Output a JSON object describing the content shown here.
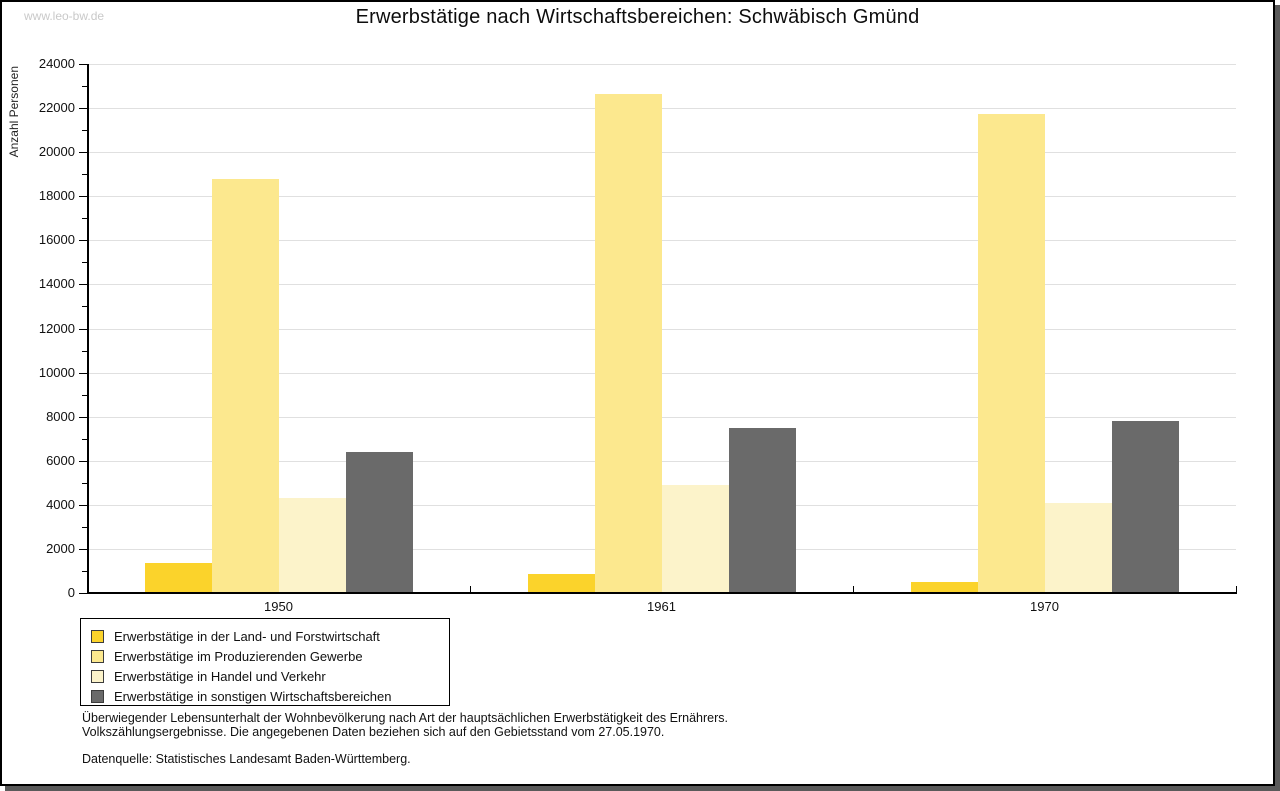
{
  "watermark": "www.leo-bw.de",
  "title": "Erwerbstätige nach Wirtschaftsbereichen: Schwäbisch Gmünd",
  "chart_data": {
    "type": "bar",
    "title": "Erwerbstätige nach Wirtschaftsbereichen: Schwäbisch Gmünd",
    "xlabel": "",
    "ylabel": "Anzahl Personen",
    "categories": [
      "1950",
      "1961",
      "1970"
    ],
    "series": [
      {
        "name": "Erwerbstätige in der Land- und Forstwirtschaft",
        "color": "#fbd32b",
        "values": [
          1350,
          880,
          500
        ]
      },
      {
        "name": "Erwerbstätige im Produzierenden Gewerbe",
        "color": "#fce88e",
        "values": [
          18800,
          22650,
          21750
        ]
      },
      {
        "name": "Erwerbstätige in Handel und Verkehr",
        "color": "#fcf3ca",
        "values": [
          4300,
          4900,
          4100
        ]
      },
      {
        "name": "Erwerbstätige in sonstigen Wirtschaftsbereichen",
        "color": "#6a6a6a",
        "values": [
          6400,
          7500,
          7800
        ]
      }
    ],
    "ylim": [
      0,
      24000
    ],
    "ytick_step": 2000,
    "yminor_step": 1000,
    "grid": true,
    "legend_position": "bottom-left"
  },
  "footnotes": {
    "line1": "Überwiegender Lebensunterhalt der Wohnbevölkerung nach Art der hauptsächlichen Erwerbstätigkeit des Ernährers.",
    "line2": "Volkszählungsergebnisse. Die angegebenen Daten beziehen sich auf den Gebietsstand vom 27.05.1970."
  },
  "source": "Datenquelle: Statistisches Landesamt Baden-Württemberg."
}
